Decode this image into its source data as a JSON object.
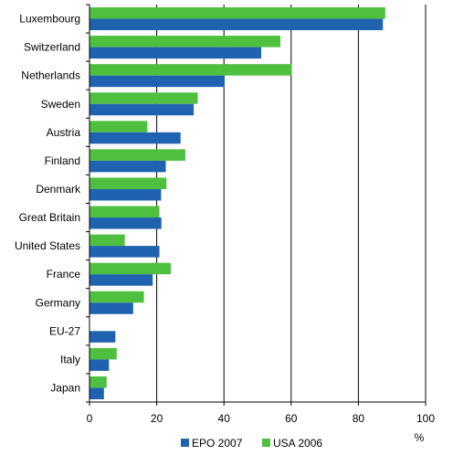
{
  "chart_data": {
    "type": "bar",
    "orientation": "horizontal",
    "title": "",
    "xlabel": "",
    "ylabel": "",
    "unit_label": "%",
    "xlim": [
      0,
      100
    ],
    "x_ticks": [
      0,
      20,
      40,
      60,
      80,
      100
    ],
    "grid": "vertical",
    "legend_position": "bottom",
    "categories": [
      "Luxembourg",
      "Switzerland",
      "Netherlands",
      "Sweden",
      "Austria",
      "Finland",
      "Denmark",
      "Great Britain",
      "United States",
      "France",
      "Germany",
      "EU-27",
      "Italy",
      "Japan"
    ],
    "series": [
      {
        "name": "EPO 2007",
        "color": "#1f63b0",
        "values": [
          87.3,
          51.1,
          40.2,
          31.0,
          27.1,
          22.7,
          21.3,
          21.4,
          20.8,
          18.8,
          13.0,
          7.7,
          5.8,
          4.3
        ]
      },
      {
        "name": "USA 2006",
        "color": "#4fbf3f",
        "values": [
          88.0,
          56.8,
          60.2,
          32.2,
          17.2,
          28.5,
          22.9,
          20.8,
          10.5,
          24.2,
          16.2,
          0,
          8.1,
          5.1
        ]
      }
    ]
  }
}
